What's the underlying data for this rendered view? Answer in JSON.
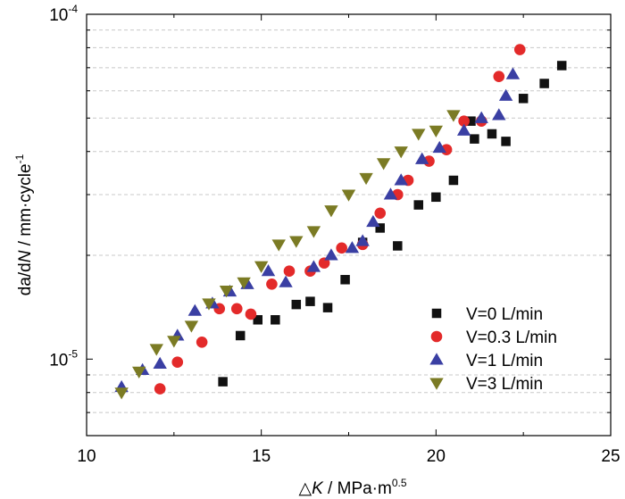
{
  "chart_data": {
    "type": "scatter",
    "xlabel": {
      "prefix": "△",
      "var": "K",
      "unit": " / MPa·m",
      "unit_sup": "0.5"
    },
    "ylabel": {
      "p1": "da/d",
      "var": "N",
      "p2": " / mm·cycle",
      "p2_sup": "-1"
    },
    "xlim": [
      10,
      25
    ],
    "ylim": [
      6e-06,
      0.0001
    ],
    "y_scale": "log",
    "x_ticks": [
      "10",
      "15",
      "20",
      "25"
    ],
    "y_ticks": [
      {
        "value": 1e-05,
        "base": "10",
        "exp": "-5"
      },
      {
        "value": 0.0001,
        "base": "10",
        "exp": "-4"
      }
    ],
    "grid": {
      "y_minor": true,
      "x": false
    },
    "legend_position": "bottom-right",
    "colors": {
      "V=0 L/min": "#111111",
      "V=0.3 L/min": "#e32a2a",
      "V=1 L/min": "#3a3fa3",
      "V=3 L/min": "#7b7b24"
    },
    "series": [
      {
        "name": "V=0 L/min",
        "marker": "square",
        "points": [
          [
            13.9,
            8.6e-06
          ],
          [
            14.4,
            1.17e-05
          ],
          [
            14.9,
            1.3e-05
          ],
          [
            15.4,
            1.3e-05
          ],
          [
            16.0,
            1.44e-05
          ],
          [
            16.4,
            1.47e-05
          ],
          [
            16.9,
            1.41e-05
          ],
          [
            17.4,
            1.7e-05
          ],
          [
            17.9,
            2.18e-05
          ],
          [
            18.4,
            2.4e-05
          ],
          [
            18.9,
            2.13e-05
          ],
          [
            19.5,
            2.8e-05
          ],
          [
            20.0,
            2.95e-05
          ],
          [
            20.5,
            3.3e-05
          ],
          [
            21.0,
            4.9e-05
          ],
          [
            21.1,
            4.35e-05
          ],
          [
            21.6,
            4.5e-05
          ],
          [
            22.0,
            4.28e-05
          ],
          [
            22.5,
            5.7e-05
          ],
          [
            23.1,
            6.3e-05
          ],
          [
            23.6,
            7.1e-05
          ]
        ]
      },
      {
        "name": "V=0.3 L/min",
        "marker": "circle",
        "points": [
          [
            12.1,
            8.2e-06
          ],
          [
            12.6,
            9.8e-06
          ],
          [
            13.3,
            1.12e-05
          ],
          [
            13.8,
            1.4e-05
          ],
          [
            14.3,
            1.4e-05
          ],
          [
            14.7,
            1.35e-05
          ],
          [
            15.3,
            1.65e-05
          ],
          [
            15.8,
            1.8e-05
          ],
          [
            16.4,
            1.8e-05
          ],
          [
            16.8,
            1.9e-05
          ],
          [
            17.3,
            2.1e-05
          ],
          [
            17.9,
            2.15e-05
          ],
          [
            18.4,
            2.65e-05
          ],
          [
            18.9,
            3e-05
          ],
          [
            19.2,
            3.3e-05
          ],
          [
            19.8,
            3.75e-05
          ],
          [
            20.3,
            4.05e-05
          ],
          [
            20.8,
            4.9e-05
          ],
          [
            21.3,
            4.9e-05
          ],
          [
            21.8,
            6.6e-05
          ],
          [
            22.4,
            7.9e-05
          ]
        ]
      },
      {
        "name": "V=1 L/min",
        "marker": "triangle-up",
        "points": [
          [
            11.0,
            8.3e-06
          ],
          [
            11.6,
            9.3e-06
          ],
          [
            12.1,
            9.7e-06
          ],
          [
            12.6,
            1.17e-05
          ],
          [
            13.1,
            1.38e-05
          ],
          [
            13.6,
            1.45e-05
          ],
          [
            14.1,
            1.57e-05
          ],
          [
            14.6,
            1.65e-05
          ],
          [
            15.2,
            1.8e-05
          ],
          [
            15.7,
            1.67e-05
          ],
          [
            16.5,
            1.85e-05
          ],
          [
            17.0,
            2e-05
          ],
          [
            17.6,
            2.1e-05
          ],
          [
            17.9,
            2.2e-05
          ],
          [
            18.2,
            2.5e-05
          ],
          [
            18.7,
            3e-05
          ],
          [
            19.0,
            3.3e-05
          ],
          [
            19.6,
            3.8e-05
          ],
          [
            20.1,
            4.1e-05
          ],
          [
            20.8,
            4.6e-05
          ],
          [
            21.3,
            5e-05
          ],
          [
            21.8,
            5.1e-05
          ],
          [
            22.0,
            5.8e-05
          ],
          [
            22.2,
            6.7e-05
          ]
        ]
      },
      {
        "name": "V=3 L/min",
        "marker": "triangle-down",
        "points": [
          [
            11.0,
            8e-06
          ],
          [
            11.5,
            9.2e-06
          ],
          [
            12.0,
            1.07e-05
          ],
          [
            12.5,
            1.13e-05
          ],
          [
            13.0,
            1.25e-05
          ],
          [
            13.5,
            1.45e-05
          ],
          [
            14.0,
            1.58e-05
          ],
          [
            14.5,
            1.67e-05
          ],
          [
            15.0,
            1.86e-05
          ],
          [
            15.5,
            2.15e-05
          ],
          [
            16.0,
            2.2e-05
          ],
          [
            16.5,
            2.35e-05
          ],
          [
            17.0,
            2.7e-05
          ],
          [
            17.5,
            3e-05
          ],
          [
            18.0,
            3.35e-05
          ],
          [
            18.5,
            3.7e-05
          ],
          [
            19.0,
            4e-05
          ],
          [
            19.5,
            4.5e-05
          ],
          [
            20.0,
            4.6e-05
          ],
          [
            20.5,
            5.1e-05
          ]
        ]
      }
    ]
  }
}
